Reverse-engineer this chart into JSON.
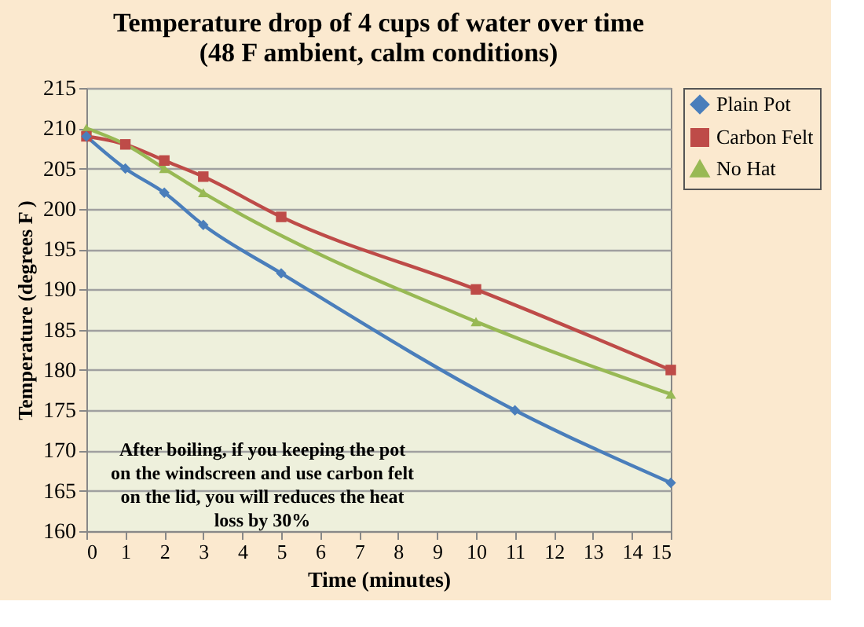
{
  "chart_data": {
    "type": "line",
    "title": "Temperature drop of 4 cups of water over time\n(48 F ambient, calm conditions)",
    "xlabel": "Time (minutes)",
    "ylabel": "Temperature (degrees F )",
    "xlim": [
      0,
      15
    ],
    "xticks": [
      0,
      1,
      2,
      3,
      4,
      5,
      6,
      7,
      8,
      9,
      10,
      11,
      12,
      13,
      14,
      15
    ],
    "ylim": [
      160,
      215
    ],
    "yticks": [
      160,
      165,
      170,
      175,
      180,
      185,
      190,
      195,
      200,
      205,
      210,
      215
    ],
    "grid": "y",
    "legend": "right",
    "series": [
      {
        "name": "Plain Pot",
        "color": "#4a7ebb",
        "marker": "diamond",
        "x": [
          0,
          1,
          2,
          3,
          5,
          11,
          15
        ],
        "values": [
          209,
          205,
          202,
          198,
          192,
          175,
          166
        ]
      },
      {
        "name": "Carbon Felt",
        "color": "#be4b48",
        "marker": "square",
        "x": [
          0,
          1,
          2,
          3,
          5,
          10,
          15
        ],
        "values": [
          209,
          208,
          206,
          204,
          199,
          190,
          180
        ]
      },
      {
        "name": "No Hat",
        "color": "#98b954",
        "marker": "triangle",
        "x": [
          0,
          1,
          2,
          3,
          10,
          15
        ],
        "values": [
          210,
          208,
          205,
          202,
          186,
          177
        ]
      }
    ],
    "annotations": [
      "After boiling, if you keeping the pot on the windscreen and use carbon felt on the lid, you will reduces the heat loss by 30%"
    ]
  }
}
